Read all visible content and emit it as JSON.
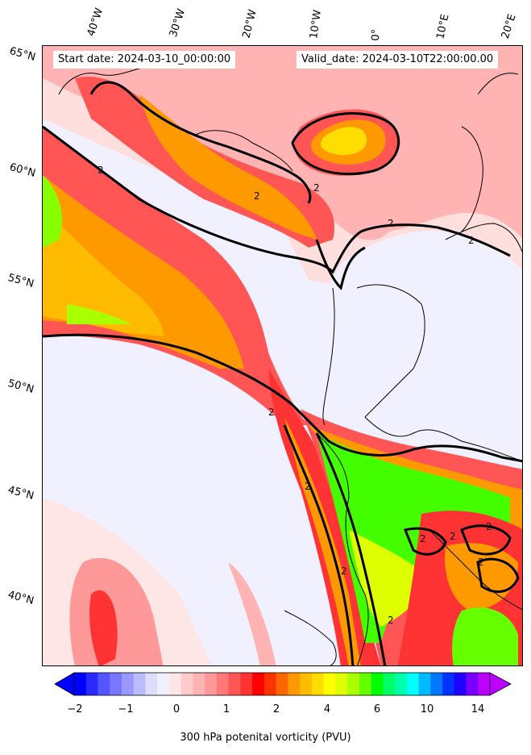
{
  "header": {
    "start_date": "Start date: 2024-03-10_00:00:00",
    "valid_date": "Valid_date: 2024-03-10T22:00:00.00"
  },
  "longitude_labels": [
    "40°W",
    "30°W",
    "20°W",
    "10°W",
    "0°",
    "10°E",
    "20°E"
  ],
  "latitude_labels": [
    "65°N",
    "60°N",
    "55°N",
    "50°N",
    "45°N",
    "40°N"
  ],
  "contour_label": "2",
  "colorbar": {
    "ticks": [
      "−2",
      "−1",
      "0",
      "1",
      "2",
      "4",
      "6",
      "10",
      "14"
    ],
    "label": "300 hPa potenital vorticity (PVU)",
    "colors": [
      "#0000ff",
      "#2a2aff",
      "#5555ff",
      "#7777ff",
      "#9999ff",
      "#bbbbff",
      "#ddddff",
      "#f0f0ff",
      "#ffe6e6",
      "#ffcccc",
      "#ffb3b3",
      "#ff9999",
      "#ff7777",
      "#ff5555",
      "#ff3333",
      "#ff0000",
      "#ff3300",
      "#ff6600",
      "#ff9900",
      "#ffbb00",
      "#ffdd00",
      "#ffff00",
      "#ddff00",
      "#aaff00",
      "#66ff00",
      "#00ff00",
      "#00ff66",
      "#00ffaa",
      "#00ffff",
      "#00bbff",
      "#0077ff",
      "#0033ff",
      "#2200ff",
      "#7700ff",
      "#bb00ff"
    ],
    "extend_low": "#0000ff",
    "extend_high": "#bb00ff"
  }
}
